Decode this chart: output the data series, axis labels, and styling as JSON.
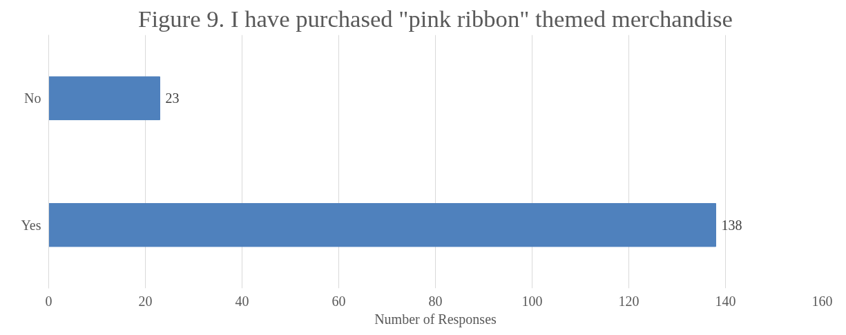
{
  "chart_data": {
    "type": "bar",
    "orientation": "horizontal",
    "title": "Figure 9. I have purchased \"pink ribbon\" themed merchandise",
    "xlabel": "Number of Responses",
    "categories": [
      "No",
      "Yes"
    ],
    "values": [
      23,
      138
    ],
    "color": "#4f81bd",
    "xlim": [
      0,
      160
    ],
    "xticks": [
      0,
      20,
      40,
      60,
      80,
      100,
      120,
      140,
      160
    ],
    "grid": "x",
    "data_labels": true
  }
}
